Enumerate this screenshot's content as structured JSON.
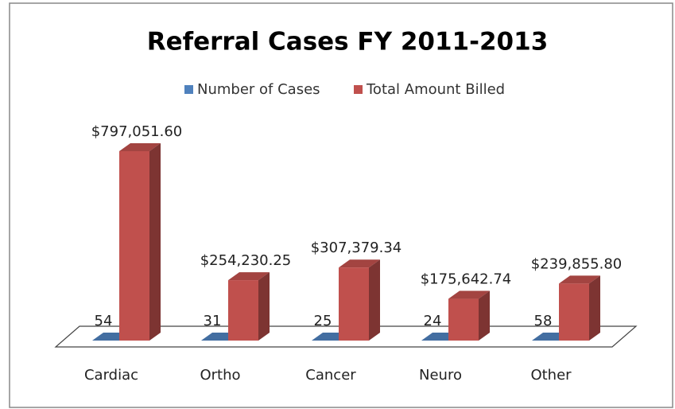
{
  "chart_data": {
    "type": "bar3d",
    "title": "Referral Cases FY 2011-2013",
    "categories": [
      "Cardiac",
      "Ortho",
      "Cancer",
      "Neuro",
      "Other"
    ],
    "series": [
      {
        "name": "Number of Cases",
        "color": "#4f81bd",
        "values": [
          54,
          31,
          25,
          24,
          58
        ]
      },
      {
        "name": "Total Amount Billed",
        "color": "#c0504d",
        "values": [
          797051.6,
          254230.25,
          307379.34,
          175642.74,
          239855.8
        ],
        "value_labels": [
          "$797,051.60",
          "$254,230.25",
          "$307,379.34",
          "$175,642.74",
          "$239,855.80"
        ]
      }
    ],
    "legend": "top"
  }
}
